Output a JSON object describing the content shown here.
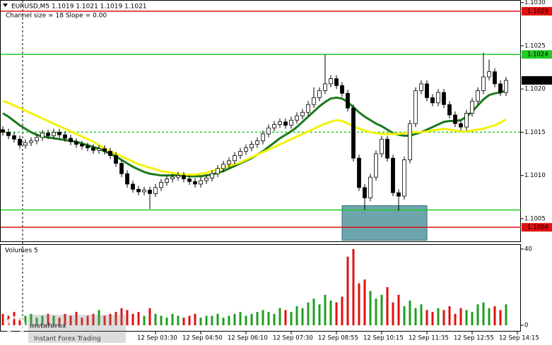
{
  "chart_data": [
    {
      "type": "candlestick",
      "header": "EURUSD,M5  1.1019 1.1021 1.1019 1.1021",
      "subheader": "Channel size = 18 Slope = 0.00",
      "categories": [
        null,
        null,
        null,
        null,
        null,
        null,
        null,
        null,
        null,
        null,
        null,
        null,
        null,
        null,
        null,
        null,
        null,
        null,
        null,
        null,
        null,
        null,
        null,
        null,
        null,
        null,
        null,
        "12 Sep 03:30",
        null,
        null,
        null,
        null,
        null,
        null,
        null,
        "12 Sep 04:50",
        null,
        null,
        null,
        null,
        null,
        null,
        null,
        "12 Sep 06:10",
        null,
        null,
        null,
        null,
        null,
        null,
        null,
        "12 Sep 07:30",
        null,
        null,
        null,
        null,
        null,
        null,
        null,
        "12 Sep 08:55",
        null,
        null,
        null,
        null,
        null,
        null,
        null,
        "12 Sep 10:15",
        null,
        null,
        null,
        null,
        null,
        null,
        null,
        "12 Sep 11:35",
        null,
        null,
        null,
        null,
        null,
        null,
        null,
        "12 Sep 12:55",
        null,
        null,
        null,
        null,
        null,
        null,
        null,
        "12 Sep 14:15"
      ],
      "open": [
        1.10153,
        1.1015,
        1.10146,
        1.10142,
        1.10135,
        1.10138,
        1.1014,
        1.10144,
        1.10149,
        1.10146,
        1.1015,
        1.10147,
        1.10143,
        1.10139,
        1.10136,
        1.10134,
        1.10132,
        1.10129,
        1.10131,
        1.10128,
        1.10123,
        1.10114,
        1.10102,
        1.1009,
        1.10084,
        1.10081,
        1.10083,
        1.10079,
        1.10086,
        1.10092,
        1.10096,
        1.10098,
        1.101,
        1.10096,
        1.10093,
        1.1009,
        1.10094,
        1.10097,
        1.10102,
        1.10108,
        1.10113,
        1.10117,
        1.10123,
        1.10128,
        1.10132,
        1.10136,
        1.1014,
        1.10148,
        1.10155,
        1.10159,
        1.10162,
        1.10158,
        1.10164,
        1.10169,
        1.10173,
        1.10182,
        1.1019,
        1.10198,
        1.10206,
        1.10212,
        1.10204,
        1.10195,
        1.10178,
        1.1012,
        1.10086,
        1.10074,
        1.10098,
        1.10125,
        1.10142,
        1.1012,
        1.1008,
        1.10076,
        1.10118,
        1.1016,
        1.10198,
        1.10206,
        1.1019,
        1.10184,
        1.10196,
        1.10182,
        1.1017,
        1.1016,
        1.10156,
        1.10172,
        1.10186,
        1.10198,
        1.10214,
        1.1022,
        1.10206,
        1.10196,
        null,
        null
      ],
      "high": [
        1.10157,
        1.10154,
        1.1015,
        1.10146,
        1.10142,
        1.10144,
        1.10148,
        1.10153,
        1.10153,
        1.10154,
        1.10154,
        1.10151,
        1.10147,
        1.10143,
        1.1014,
        1.10138,
        1.10136,
        1.10135,
        1.10135,
        1.10132,
        1.10127,
        1.10118,
        1.10106,
        1.10094,
        1.10088,
        1.10087,
        1.10087,
        1.1009,
        1.10096,
        1.101,
        1.10102,
        1.10104,
        1.10104,
        1.101,
        1.10097,
        1.10098,
        1.10101,
        1.10106,
        1.10112,
        1.10117,
        1.10121,
        1.10127,
        1.10132,
        1.10136,
        1.1014,
        1.10144,
        1.10152,
        1.10159,
        1.10163,
        1.10166,
        1.10166,
        1.10168,
        1.10173,
        1.10177,
        1.10186,
        1.10202,
        1.10202,
        1.1024,
        1.10216,
        1.10216,
        1.10208,
        1.10199,
        1.10182,
        1.10124,
        1.1009,
        1.10102,
        1.10129,
        1.10146,
        1.10146,
        1.10124,
        1.10084,
        1.10122,
        1.10164,
        1.10202,
        1.1021,
        1.1021,
        1.10194,
        1.102,
        1.102,
        1.10186,
        1.10174,
        1.10164,
        1.10176,
        1.1019,
        1.10202,
        1.10242,
        1.10234,
        1.10224,
        1.1021,
        1.10214,
        null,
        null
      ],
      "low": [
        1.10146,
        1.10142,
        1.10138,
        1.10131,
        1.10131,
        1.10134,
        1.10136,
        1.1014,
        1.10142,
        1.10142,
        1.10143,
        1.10139,
        1.10135,
        1.10132,
        1.1013,
        1.10128,
        1.10125,
        1.10125,
        1.10124,
        1.10119,
        1.1011,
        1.10098,
        1.10086,
        1.1008,
        1.10077,
        1.10077,
        1.10061,
        1.10075,
        1.10082,
        1.10088,
        1.10092,
        1.10094,
        1.10092,
        1.10089,
        1.10086,
        1.10086,
        1.1009,
        1.10093,
        1.10098,
        1.10104,
        1.10109,
        1.10113,
        1.10119,
        1.10124,
        1.10128,
        1.10132,
        1.10136,
        1.10144,
        1.10151,
        1.10155,
        1.10154,
        1.10154,
        1.1016,
        1.10165,
        1.10169,
        1.10178,
        1.10186,
        1.10194,
        1.10202,
        1.102,
        1.10191,
        1.10174,
        1.10116,
        1.10082,
        1.1006,
        1.1007,
        1.10094,
        1.10121,
        1.10116,
        1.10076,
        1.10059,
        1.10072,
        1.10114,
        1.10156,
        1.10194,
        1.10186,
        1.1018,
        1.1018,
        1.10178,
        1.10166,
        1.10156,
        1.10152,
        1.10152,
        1.10168,
        1.10182,
        1.10194,
        1.1021,
        1.10202,
        1.10192,
        1.10192,
        null,
        null
      ],
      "close": [
        1.1015,
        1.10146,
        1.10142,
        1.10135,
        1.10138,
        1.1014,
        1.10144,
        1.10149,
        1.10146,
        1.1015,
        1.10147,
        1.10143,
        1.10139,
        1.10136,
        1.10134,
        1.10132,
        1.10129,
        1.10131,
        1.10128,
        1.10123,
        1.10114,
        1.10102,
        1.1009,
        1.10084,
        1.10081,
        1.10083,
        1.10079,
        1.10086,
        1.10092,
        1.10096,
        1.10098,
        1.101,
        1.10096,
        1.10093,
        1.1009,
        1.10094,
        1.10097,
        1.10102,
        1.10108,
        1.10113,
        1.10117,
        1.10123,
        1.10128,
        1.10132,
        1.10136,
        1.1014,
        1.10148,
        1.10155,
        1.10159,
        1.10162,
        1.10158,
        1.10164,
        1.10169,
        1.10173,
        1.10182,
        1.1019,
        1.10198,
        1.10206,
        1.10212,
        1.10204,
        1.10195,
        1.10178,
        1.1012,
        1.10086,
        1.10074,
        1.10098,
        1.10125,
        1.10142,
        1.1012,
        1.1008,
        1.10076,
        1.10118,
        1.1016,
        1.10198,
        1.10206,
        1.1019,
        1.10184,
        1.10196,
        1.10182,
        1.1017,
        1.1016,
        1.10156,
        1.10172,
        1.10186,
        1.10198,
        1.10214,
        1.1022,
        1.10206,
        1.10196,
        1.1021,
        null,
        null
      ],
      "series": [
        {
          "color": "#1a7a1a",
          "values": [
            1.10172,
            1.10168,
            1.10163,
            1.10158,
            1.10154,
            1.1015,
            1.10147,
            1.10145,
            1.10144,
            1.10143,
            1.10142,
            1.10141,
            1.1014,
            1.10139,
            1.10137,
            1.10135,
            1.10133,
            1.10131,
            1.10128,
            1.10125,
            1.10122,
            1.10118,
            1.10114,
            1.1011,
            1.10107,
            1.10104,
            1.10102,
            1.10101,
            1.101,
            1.101,
            1.101,
            1.101,
            1.101,
            1.10099,
            1.10099,
            1.10099,
            1.101,
            1.10101,
            1.10103,
            1.10105,
            1.10108,
            1.10111,
            1.10114,
            1.10117,
            1.1012,
            1.10124,
            1.10128,
            1.10133,
            1.10138,
            1.10143,
            1.10147,
            1.10151,
            1.10156,
            1.10162,
            1.10168,
            1.10174,
            1.1018,
            1.10185,
            1.10189,
            1.1019,
            1.10189,
            1.10185,
            1.10179,
            1.10173,
            1.10168,
            1.10164,
            1.1016,
            1.10157,
            1.10153,
            1.10149,
            1.10147,
            1.10146,
            1.10146,
            1.10148,
            1.1015,
            1.10153,
            1.10156,
            1.10159,
            1.10162,
            1.10163,
            1.10163,
            1.10164,
            1.10168,
            1.10174,
            1.10181,
            1.10188,
            1.10193,
            1.10195,
            1.10196,
            1.10198,
            null,
            null
          ]
        },
        {
          "color": "#f2f20a",
          "values": [
            1.10186,
            1.10184,
            1.10181,
            1.10178,
            1.10175,
            1.10172,
            1.10169,
            1.10166,
            1.10163,
            1.1016,
            1.10157,
            1.10154,
            1.10151,
            1.10148,
            1.10145,
            1.10142,
            1.10139,
            1.10135,
            1.10131,
            1.10128,
            1.10125,
            1.10122,
            1.10119,
            1.10116,
            1.10113,
            1.10111,
            1.10109,
            1.10107,
            1.10105,
            1.10104,
            1.10103,
            1.10102,
            1.10101,
            1.10101,
            1.10101,
            1.10102,
            1.10103,
            1.10105,
            1.10107,
            1.10109,
            1.10111,
            1.10113,
            1.10115,
            1.10118,
            1.10121,
            1.10124,
            1.10127,
            1.1013,
            1.10133,
            1.10136,
            1.10139,
            1.10142,
            1.10145,
            1.10148,
            1.10151,
            1.10154,
            1.10157,
            1.1016,
            1.10162,
            1.10164,
            1.10163,
            1.1016,
            1.10157,
            1.10154,
            1.10152,
            1.1015,
            1.10149,
            1.10148,
            1.10148,
            1.10148,
            1.10148,
            1.10149,
            1.1015,
            1.1015,
            1.1015,
            1.10151,
            1.10152,
            1.10153,
            1.10154,
            1.10153,
            1.10152,
            1.10151,
            1.10151,
            1.10152,
            1.10153,
            1.10154,
            1.10156,
            1.10158,
            1.10161,
            1.10165,
            null,
            null
          ]
        }
      ],
      "levels": [
        {
          "value": 1.1029,
          "color": "#e01010",
          "style": "solid"
        },
        {
          "value": 1.1024,
          "color": "#22cc22",
          "style": "solid"
        },
        {
          "value": 1.1015,
          "color": "#22cc22",
          "style": "dashed"
        },
        {
          "value": 1.1006,
          "color": "#22cc22",
          "style": "solid"
        },
        {
          "value": 1.1004,
          "color": "#e01010",
          "style": "solid"
        }
      ],
      "price_markers": [
        {
          "value": 1.1029,
          "color": "#e01010"
        },
        {
          "value": 1.1024,
          "color": "#22cc22"
        },
        {
          "value": 1.1021,
          "color": "#000000"
        },
        {
          "value": 1.1004,
          "color": "#e01010"
        }
      ],
      "zone": {
        "low": 1.10025,
        "high": 1.10065,
        "color": "#4a8f99"
      },
      "ylim": [
        1.10023,
        1.10303
      ],
      "yticks": [
        {
          "value": 1.103,
          "label": "1.1030"
        },
        {
          "value": 1.1025,
          "label": "1.1025"
        },
        {
          "value": 1.102,
          "label": "1.1020"
        },
        {
          "value": 1.1015,
          "label": "1.1015"
        },
        {
          "value": 1.101,
          "label": "1.1010"
        },
        {
          "value": 1.1005,
          "label": "1.1005"
        }
      ],
      "up_color": "#ffffff",
      "down_color": "#000000"
    },
    {
      "type": "bar",
      "title": "Volumes 5",
      "values": [
        6,
        5,
        7,
        4,
        5,
        6,
        4,
        5,
        6,
        5,
        4,
        6,
        5,
        7,
        4,
        5,
        6,
        8,
        5,
        6,
        7,
        9,
        8,
        6,
        7,
        5,
        9,
        6,
        5,
        4,
        6,
        5,
        4,
        5,
        6,
        4,
        5,
        5,
        6,
        4,
        5,
        6,
        7,
        5,
        6,
        7,
        8,
        7,
        6,
        9,
        8,
        7,
        10,
        9,
        12,
        14,
        11,
        16,
        13,
        12,
        15,
        36,
        40,
        22,
        24,
        18,
        14,
        16,
        20,
        12,
        16,
        10,
        13,
        9,
        11,
        8,
        7,
        9,
        8,
        10,
        6,
        9,
        8,
        7,
        11,
        12,
        9,
        10,
        8,
        11,
        null,
        null
      ],
      "ylim": [
        -3.3,
        42.2
      ],
      "yticks": [
        0,
        40
      ],
      "up_color": "#1f9e1f",
      "down_color": "#e01010"
    }
  ],
  "watermark": {
    "name": "instaforex",
    "tagline": "Instant Forex Trading"
  }
}
